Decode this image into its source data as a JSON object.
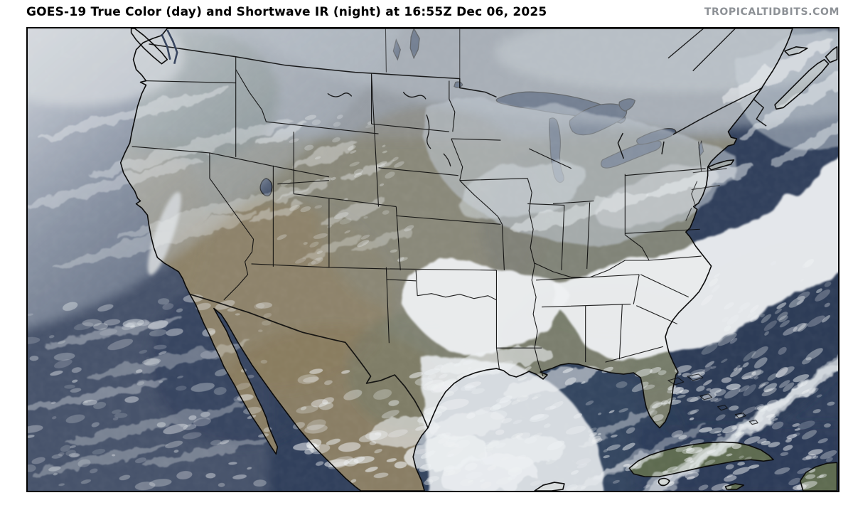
{
  "header": {
    "title": "GOES-19 True Color (day) and Shortwave IR (night) at 16:55Z Dec 06, 2025",
    "watermark": "TROPICALTIDBITS.COM"
  },
  "map": {
    "description": "GOES-19 visible satellite view of North America with coastlines and state borders overlaid in black",
    "colors": {
      "title-color": "#000000",
      "brand-color": "#8d9196",
      "ocean-deep": "#31405c",
      "ocean-atlantic": "#293a56",
      "ocean-pacific": "#5b6679",
      "ocean-gulf": "#3a4964",
      "land-base": "#8a897b",
      "land-canada": "#98a0a8",
      "land-desert": "#8e8368",
      "land-mexico": "#8a7d60",
      "land-forest": "#6e7a74",
      "land-east": "#7c8076",
      "land-southeast": "#757b6a",
      "land-tropical": "#5e6b50",
      "cloud-bright": "#eef0f2",
      "cloud-veil": "#b9c1ca",
      "outline": "#0b0b0b"
    }
  }
}
